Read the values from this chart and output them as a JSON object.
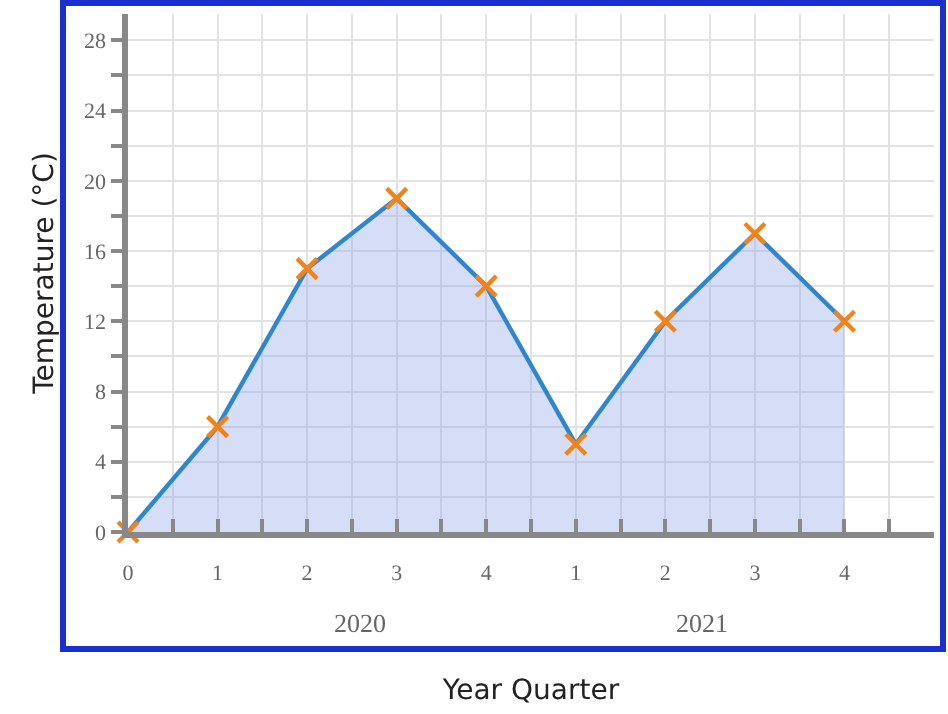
{
  "chart_data": {
    "type": "area",
    "xlabel": "Year Quarter",
    "ylabel": "Temperature (°C)",
    "categories": [
      "0",
      "1",
      "2",
      "3",
      "4",
      "1",
      "2",
      "3",
      "4",
      null
    ],
    "series": [
      {
        "color": "#2e86d1",
        "values": [
          0,
          6,
          15,
          19,
          14,
          5,
          12,
          17,
          12,
          null
        ]
      }
    ],
    "ylim": [
      0,
      29.5
    ],
    "yticks": [
      0,
      {
        "value": 2,
        "label": null
      },
      4,
      {
        "value": 6,
        "label": null
      },
      8,
      {
        "value": 10,
        "label": null
      },
      12,
      {
        "value": 14,
        "label": null
      },
      16,
      {
        "value": 18,
        "label": null
      },
      20,
      {
        "value": 22,
        "label": null
      },
      24,
      {
        "value": 26,
        "label": null
      },
      28
    ],
    "annotations": [
      "2020",
      "2021"
    ],
    "grid": true,
    "marker": "cross",
    "line_style": "solid"
  }
}
